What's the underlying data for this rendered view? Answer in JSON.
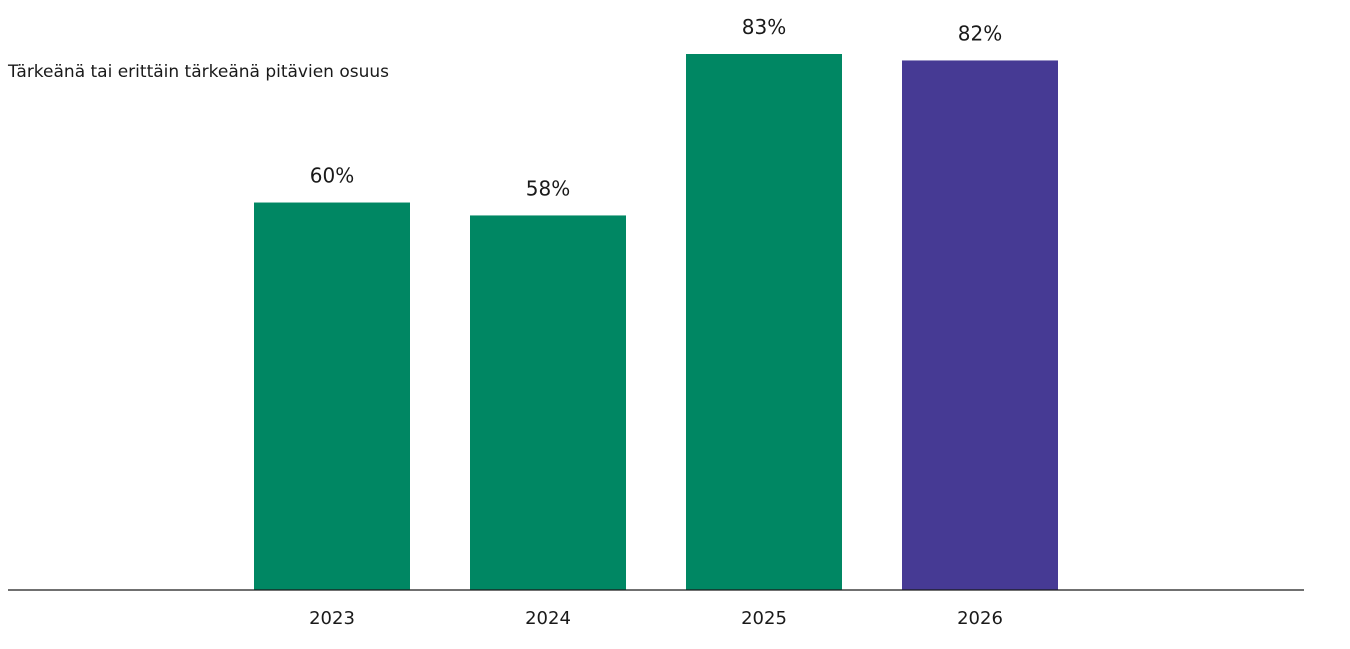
{
  "chart_data": {
    "type": "bar",
    "title": "Tärkeänä tai erittäin tärkeänä pitävien osuus",
    "categories": [
      "2023",
      "2024",
      "2025",
      "2026"
    ],
    "values": [
      60,
      58,
      83,
      82
    ],
    "value_labels": [
      "60%",
      "58%",
      "83%",
      "82%"
    ],
    "unit": "%",
    "ylim": [
      0,
      83
    ],
    "grid": false,
    "legend": "none",
    "bar_colors": [
      "#008763",
      "#008763",
      "#008763",
      "#463a94"
    ]
  },
  "colors": {
    "green": "#008763",
    "purple": "#463a94",
    "axis": "#1a1a1a",
    "text": "#1a1a1a"
  }
}
